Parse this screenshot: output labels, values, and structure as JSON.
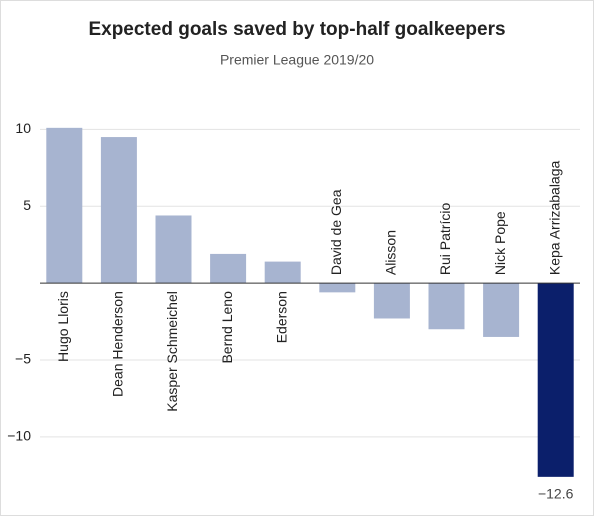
{
  "chart_data": {
    "type": "bar",
    "title": "Expected goals saved by top-half goalkeepers",
    "subtitle": "Premier League 2019/20",
    "categories": [
      "Hugo Lloris",
      "Dean Henderson",
      "Kasper Schmeichel",
      "Bernd Leno",
      "Ederson",
      "David de Gea",
      "Alisson",
      "Rui Patrício",
      "Nick Pope",
      "Kepa Arrizabalaga"
    ],
    "values": [
      10.1,
      9.5,
      4.4,
      1.9,
      1.4,
      -0.6,
      -2.3,
      -3.0,
      -3.5,
      -12.6
    ],
    "value_labels": [
      null,
      null,
      null,
      null,
      null,
      null,
      null,
      null,
      null,
      "−12.6"
    ],
    "colors": [
      "#a7b4d0",
      "#a7b4d0",
      "#a7b4d0",
      "#a7b4d0",
      "#a7b4d0",
      "#a7b4d0",
      "#a7b4d0",
      "#a7b4d0",
      "#a7b4d0",
      "#0b1f6b"
    ],
    "ylim": [
      -13,
      11
    ],
    "yticks": [
      10,
      5,
      {
        "value": -5,
        "label": "−5"
      },
      {
        "value": -10,
        "label": "−10"
      }
    ],
    "grid": true
  }
}
